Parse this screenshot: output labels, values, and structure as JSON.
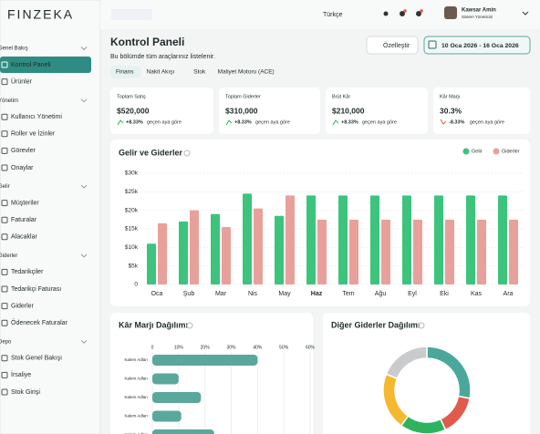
{
  "sidebar": {
    "logo": "FINZEKA",
    "groups": [
      {
        "title": "Genel Bakış",
        "items": [
          "Kontrol Paneli",
          "Ürünler"
        ]
      },
      {
        "title": "Yönetim",
        "items": [
          "Kullanıcı Yönetimi",
          "Roller ve İzinler",
          "Görevler",
          "Onaylar"
        ]
      },
      {
        "title": "Gelir",
        "items": [
          "Müşteriler",
          "Faturalar",
          "Alacaklar"
        ]
      },
      {
        "title": "Giderler",
        "items": [
          "Tedarikçiler",
          "Tedarikçi Faturası",
          "Giderler",
          "Ödenecek Faturalar"
        ]
      },
      {
        "title": "Depo",
        "items": [
          "Stok Genel Bakışı",
          "İrsaliye",
          "Stok Girişi"
        ]
      }
    ]
  },
  "topbar": {
    "language": "Türkçe",
    "user_name": "Kawsar Amin",
    "user_role": "Sistem Yöneticisi"
  },
  "header": {
    "title": "Kontrol Paneli",
    "subtitle": "Bu bölümde tüm araçlarınız listelenir.",
    "customize": "Özelleştir",
    "date_range": "10 Oca 2026 - 16 Oca 2026",
    "tabs": [
      "Finans",
      "Nakit Akışı",
      "Stok",
      "Maliyet Motoru (ACE)"
    ]
  },
  "kpis": [
    {
      "label": "Toplam Satış",
      "value": "$520,000",
      "change": "+8.33%",
      "note": "geçen aya göre"
    },
    {
      "label": "Toplam Giderler",
      "value": "$310,000",
      "change": "+8.33%",
      "note": "geçen aya göre"
    },
    {
      "label": "Brüt Kâr",
      "value": "$210,000",
      "change": "+8.33%",
      "note": "geçen aya göre"
    },
    {
      "label": "Kâr Marjı",
      "value": "30.3%",
      "change": "-8.33%",
      "note": "geçen aya göre"
    }
  ],
  "chart_data": [
    {
      "type": "bar",
      "title": "Gelir ve Giderler",
      "categories": [
        "Oca",
        "Şub",
        "Mar",
        "Nis",
        "May",
        "Haz",
        "Tem",
        "Ağu",
        "Eyl",
        "Eki",
        "Kas",
        "Ara"
      ],
      "series": [
        {
          "name": "Gelir",
          "color": "#3cc47c",
          "values": [
            11,
            17,
            19,
            24.5,
            18.5,
            24,
            24,
            24,
            24,
            24,
            24,
            24
          ]
        },
        {
          "name": "Giderler",
          "color": "#e8a19a",
          "values": [
            16.5,
            20,
            15.5,
            20.5,
            24,
            17.5,
            17.5,
            17.5,
            17.5,
            17.5,
            17.5,
            17.5
          ]
        }
      ],
      "ylim": [
        0,
        30
      ],
      "yticks": [
        0,
        {
          "value": 5,
          "label": "$5k"
        },
        {
          "value": 10,
          "label": "$10k"
        },
        {
          "value": 15,
          "label": "$15k"
        },
        {
          "value": 20,
          "label": "$20k"
        },
        {
          "value": 25,
          "label": "$25k"
        },
        {
          "value": 30,
          "label": "$30k"
        }
      ],
      "grid": true,
      "legend": "top-right"
    },
    {
      "type": "hbar",
      "title": "Kâr Marjı Dağılımı",
      "categories": [
        "Kalem Adları",
        "Kalem Adları",
        "Kalem Adları",
        "Kalem Adları",
        "Kalem Adları"
      ],
      "values": [
        40,
        10,
        18.5,
        11,
        23.5
      ],
      "color": "#5aa89c",
      "xlim": [
        0,
        60
      ],
      "xticks": [
        0,
        {
          "value": 10,
          "label": "10%"
        },
        {
          "value": 20,
          "label": "20%"
        },
        {
          "value": 30,
          "label": "30%"
        },
        {
          "value": 40,
          "label": "40%"
        },
        {
          "value": 50,
          "label": "50%"
        },
        {
          "value": 60,
          "label": "60%"
        }
      ],
      "grid": true
    },
    {
      "type": "donut",
      "title": "Diğer Giderler Dağılımı",
      "values": [
        28,
        15,
        17,
        21,
        19
      ],
      "colors": [
        "#4aa89a",
        "#e05b4b",
        "#2db35e",
        "#f5b82e",
        "#c8cccc"
      ]
    }
  ]
}
